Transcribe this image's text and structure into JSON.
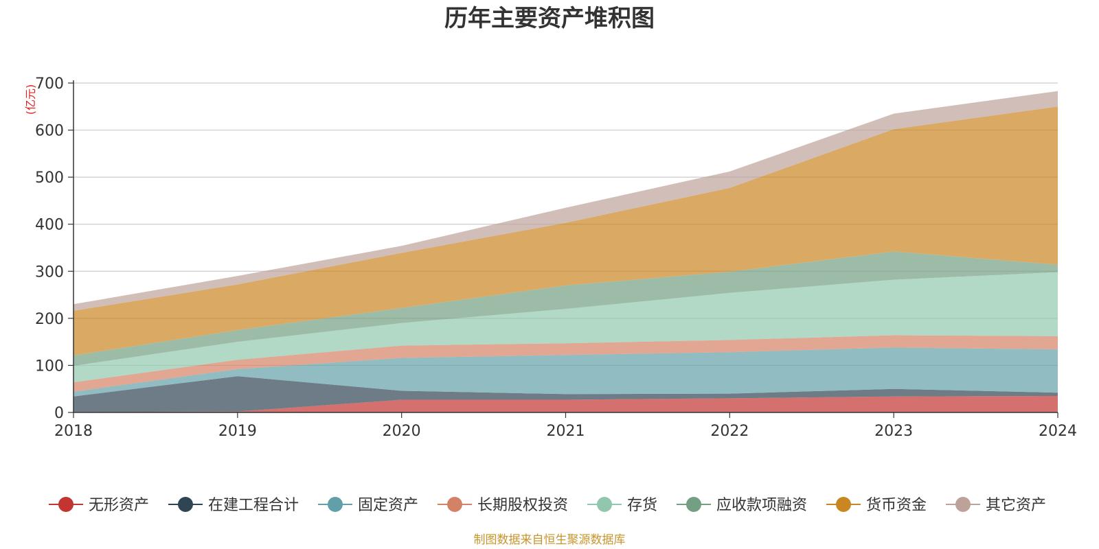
{
  "chart_data": {
    "type": "area",
    "title": "历年主要资产堆积图",
    "unit_label": "(亿元)",
    "x": [
      "2018",
      "2019",
      "2020",
      "2021",
      "2022",
      "2023",
      "2024"
    ],
    "ylim": [
      0,
      700
    ],
    "yticks": [
      "0",
      "100",
      "200",
      "300",
      "400",
      "500",
      "600",
      "700"
    ],
    "stacked": true,
    "series": [
      {
        "name": "无形资产",
        "color": "#c23531",
        "values": [
          1,
          2,
          27,
          27,
          30,
          34,
          35
        ]
      },
      {
        "name": "在建工程合计",
        "color": "#2f4554",
        "values": [
          33,
          75,
          19,
          12,
          10,
          16,
          7
        ]
      },
      {
        "name": "固定资产",
        "color": "#61a0a8",
        "values": [
          10,
          15,
          70,
          83,
          88,
          88,
          92
        ]
      },
      {
        "name": "长期股权投资",
        "color": "#d48265",
        "values": [
          20,
          20,
          26,
          25,
          26,
          26,
          28
        ]
      },
      {
        "name": "存货",
        "color": "#91c7ae",
        "values": [
          35,
          38,
          48,
          73,
          100,
          118,
          136
        ]
      },
      {
        "name": "应收款项融资",
        "color": "#749f83",
        "values": [
          22,
          25,
          32,
          50,
          45,
          60,
          16
        ]
      },
      {
        "name": "货币资金",
        "color": "#ca8622",
        "values": [
          95,
          97,
          117,
          133,
          178,
          260,
          336
        ]
      },
      {
        "name": "其它资产",
        "color": "#bda29a",
        "values": [
          14,
          18,
          15,
          32,
          35,
          33,
          33
        ]
      }
    ],
    "legend_position": "bottom"
  },
  "footer": "制图数据来自恒生聚源数据库"
}
